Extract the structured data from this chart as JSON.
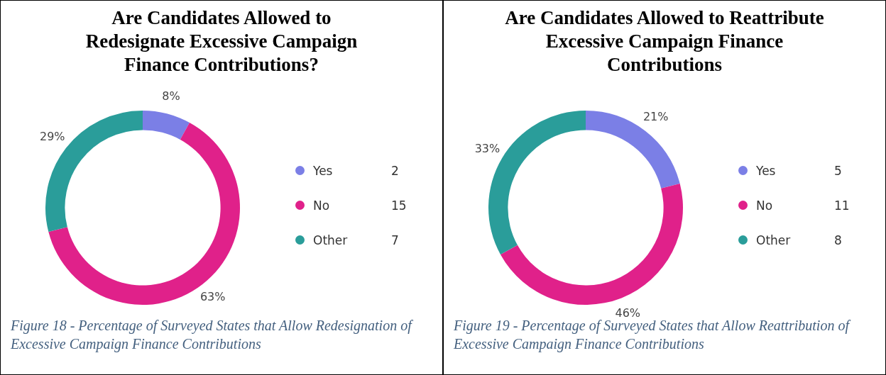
{
  "chart_data": [
    {
      "type": "donut",
      "title": "Are Candidates Allowed to Redesignate Excessive Campaign Finance Contributions?",
      "categories": [
        "Yes",
        "No",
        "Other"
      ],
      "values": [
        8,
        63,
        29
      ],
      "colors": [
        "#7b7fe6",
        "#e0218a",
        "#2a9d9a"
      ],
      "value_labels": [
        "8%",
        "63%",
        "29%"
      ],
      "legend": "right",
      "annotations": [
        {
          "text": "2",
          "x": "Yes"
        },
        {
          "text": "15",
          "x": "No"
        },
        {
          "text": "7",
          "x": "Other"
        },
        "Figure 18 - Percentage of Surveyed States that Allow Redesignation of Excessive Campaign Finance Contributions"
      ]
    },
    {
      "type": "donut",
      "title": "Are Candidates Allowed to Reattribute Excessive Campaign Finance Contributions",
      "categories": [
        "Yes",
        "No",
        "Other"
      ],
      "values": [
        21,
        46,
        33
      ],
      "colors": [
        "#7b7fe6",
        "#e0218a",
        "#2a9d9a"
      ],
      "value_labels": [
        "21%",
        "46%",
        "33%"
      ],
      "legend": "right",
      "annotations": [
        {
          "text": "5",
          "x": "Yes"
        },
        {
          "text": "11",
          "x": "No"
        },
        {
          "text": "8",
          "x": "Other"
        },
        "Figure 19 - Percentage of Surveyed States that Allow Reattribution of Excessive Campaign Finance Contributions"
      ]
    }
  ]
}
